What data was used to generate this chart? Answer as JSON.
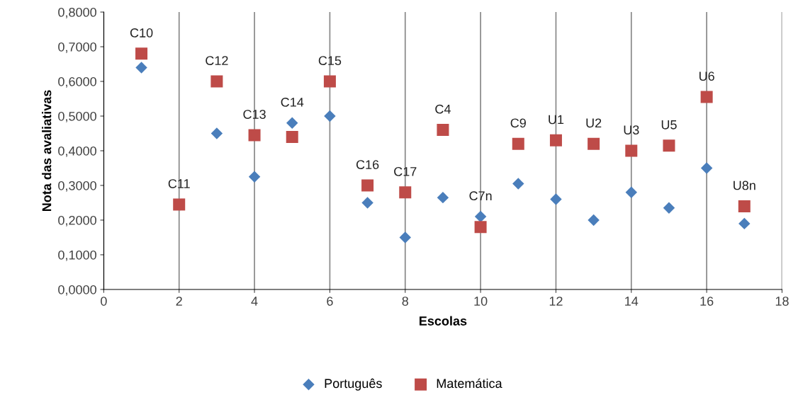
{
  "chart_data": {
    "type": "scatter",
    "xlabel": "Escolas",
    "ylabel": "Nota das avaliativas",
    "x": [
      1,
      2,
      3,
      4,
      5,
      6,
      7,
      8,
      9,
      10,
      11,
      12,
      13,
      14,
      15,
      16,
      17
    ],
    "series": [
      {
        "name": "Português",
        "color": "#4a7ebb",
        "marker": "diamond",
        "values": [
          0.64,
          null,
          0.45,
          0.325,
          0.48,
          0.5,
          0.25,
          0.15,
          0.265,
          0.21,
          0.305,
          0.26,
          0.2,
          0.28,
          0.235,
          0.35,
          0.19
        ]
      },
      {
        "name": "Matemática",
        "color": "#be4b48",
        "marker": "square",
        "values": [
          0.68,
          0.245,
          0.6,
          0.445,
          0.44,
          0.6,
          0.3,
          0.28,
          0.46,
          0.18,
          0.42,
          0.43,
          0.42,
          0.4,
          0.415,
          0.555,
          0.24
        ]
      }
    ],
    "annotations": [
      {
        "text": "C10",
        "x": 1,
        "y": 0.68
      },
      {
        "text": "C11",
        "x": 2,
        "y": 0.245
      },
      {
        "text": "C12",
        "x": 3,
        "y": 0.6
      },
      {
        "text": "C13",
        "x": 4,
        "y": 0.445
      },
      {
        "text": "C14",
        "x": 5,
        "y": 0.48
      },
      {
        "text": "C15",
        "x": 6,
        "y": 0.6
      },
      {
        "text": "C16",
        "x": 7,
        "y": 0.3
      },
      {
        "text": "C17",
        "x": 8,
        "y": 0.28
      },
      {
        "text": "C4",
        "x": 9,
        "y": 0.46
      },
      {
        "text": "C7n",
        "x": 10,
        "y": 0.21
      },
      {
        "text": "C9",
        "x": 11,
        "y": 0.42
      },
      {
        "text": "U1",
        "x": 12,
        "y": 0.43
      },
      {
        "text": "U2",
        "x": 13,
        "y": 0.42
      },
      {
        "text": "U3",
        "x": 14,
        "y": 0.4
      },
      {
        "text": "U5",
        "x": 15,
        "y": 0.415
      },
      {
        "text": "U6",
        "x": 16,
        "y": 0.555
      },
      {
        "text": "U8n",
        "x": 17,
        "y": 0.24
      }
    ],
    "xlim": [
      0,
      18
    ],
    "xticks": [
      0,
      2,
      4,
      6,
      8,
      10,
      12,
      14,
      16,
      18
    ],
    "ylim": [
      0,
      0.8
    ],
    "yticks": [
      {
        "value": 0,
        "label": "0,0000"
      },
      {
        "value": 0.1,
        "label": "0,1000"
      },
      {
        "value": 0.2,
        "label": "0,2000"
      },
      {
        "value": 0.3,
        "label": "0,3000"
      },
      {
        "value": 0.4,
        "label": "0,4000"
      },
      {
        "value": 0.5,
        "label": "0,5000"
      },
      {
        "value": 0.6,
        "label": "0,6000"
      },
      {
        "value": 0.7,
        "label": "0,7000"
      },
      {
        "value": 0.8,
        "label": "0,8000"
      }
    ],
    "grid": "x",
    "legend": "bottom"
  }
}
